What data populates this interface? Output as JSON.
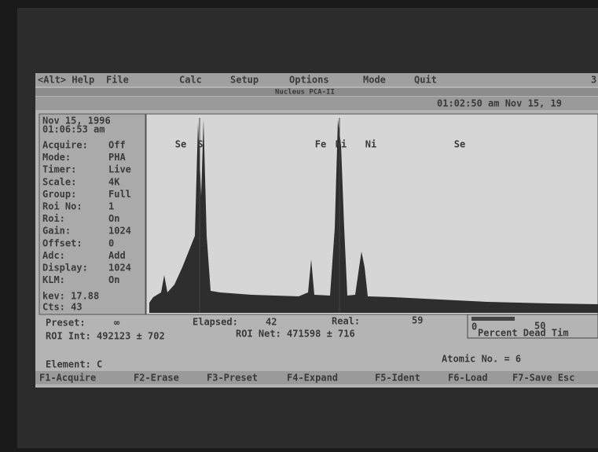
{
  "menu": [
    "<Alt> Help",
    "File",
    "Calc",
    "Setup",
    "Options",
    "Mode",
    "Quit",
    "3"
  ],
  "title": "Nucleus PCA-II",
  "clock": "01:02:50 am Nov 15, 19",
  "status": {
    "date": "Nov 15, 1996",
    "time": "01:06:53 am",
    "settings": [
      {
        "label": "Acquire:",
        "value": "Off"
      },
      {
        "label": "Mode:",
        "value": "PHA"
      },
      {
        "label": "Timer:",
        "value": "Live"
      },
      {
        "label": "Scale:",
        "value": "4K"
      },
      {
        "label": "Group:",
        "value": "Full"
      },
      {
        "label": "Roi No:",
        "value": "1"
      },
      {
        "label": "Roi:",
        "value": "On"
      },
      {
        "label": "Gain:",
        "value": "1024"
      },
      {
        "label": "Offset:",
        "value": "0"
      },
      {
        "label": "Adc:",
        "value": "Add"
      },
      {
        "label": "Display:",
        "value": "1024"
      },
      {
        "label": "KLM:",
        "value": "On"
      }
    ],
    "kev": "kev: 17.88",
    "cts": "Cts: 43"
  },
  "peaks": [
    "Se",
    "S",
    "Fe",
    "Ni",
    "Ni",
    "Se"
  ],
  "info": {
    "preset_label": "Preset:",
    "preset": "∞",
    "elapsed_label": "Elapsed:",
    "elapsed": "42",
    "real_label": "Real:",
    "real": "59",
    "roi_int": "ROI Int: 492123 ± 702",
    "roi_net": "ROI Net: 471598 ± 716",
    "gauge_min": "0",
    "gauge_mid": "50",
    "gauge_label": "Percent Dead Tim",
    "element": "Element: C",
    "atomic": "Atomic No. = 6"
  },
  "function_keys": [
    "F1-Acquire",
    "F2-Erase",
    "F3-Preset",
    "F4-Expand",
    "F5-Ident",
    "F6-Load",
    "F7-Save Esc"
  ]
}
